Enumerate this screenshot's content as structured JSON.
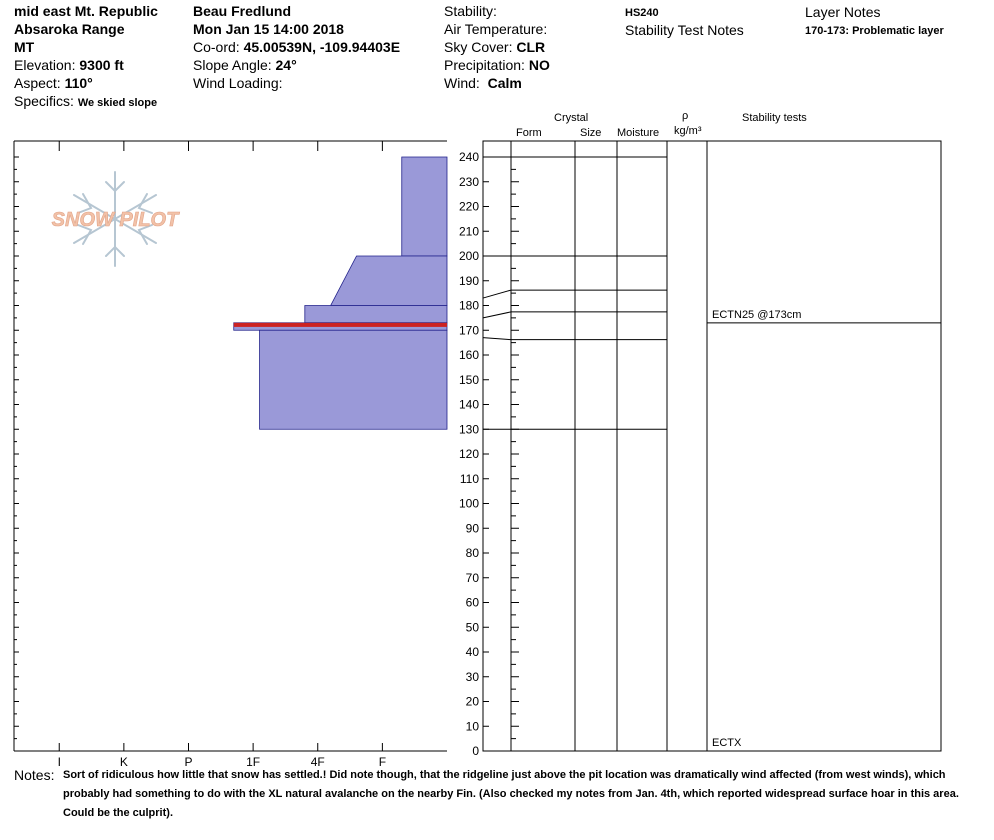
{
  "header": {
    "location_name": "mid east Mt. Republic",
    "range": "Absaroka Range",
    "state": "MT",
    "elevation_label": "Elevation:",
    "elevation_value": "9300 ft",
    "aspect_label": "Aspect:",
    "aspect_value": "110°",
    "specifics_label": "Specifics:",
    "specifics_value": "We skied slope",
    "observer": "Beau  Fredlund",
    "datetime": "Mon Jan 15 14:00 2018",
    "coord_label": "Co-ord:",
    "coord_value": "45.00539N, -109.94403E",
    "slope_label": "Slope Angle:",
    "slope_value": "24°",
    "wind_loading_label": "Wind Loading:",
    "wind_loading_value": "",
    "stability_label": "Stability:",
    "stability_value": "",
    "air_temp_label": "Air Temperature:",
    "air_temp_value": "",
    "sky_label": "Sky Cover:",
    "sky_value": "CLR",
    "precip_label": "Precipitation:",
    "precip_value": "NO",
    "wind_label": "Wind:",
    "wind_value": "Calm",
    "hs_label": "HS240",
    "stability_notes_title": "Stability Test Notes",
    "layer_notes_title": "Layer Notes",
    "layer_notes_value": "170-173: Problematic layer"
  },
  "logo": {
    "text": "SNOW PILOT"
  },
  "columns": {
    "crystal": "Crystal",
    "form": "Form",
    "size": "Size",
    "moisture": "Moisture",
    "rho": "ρ",
    "density_unit": "kg/m³",
    "stability_tests": "Stability tests"
  },
  "notes": {
    "label": "Notes:",
    "text": "Sort of ridiculous how little that snow has settled.!  Did note though, that the ridgeline just above the pit location was dramatically wind affected (from west winds), which probably had something to do with the XL natural avalanche on the nearby Fin.  (Also checked my notes from Jan. 4th, which reported widespread surface hoar in this area.  Could be the culprit)."
  },
  "colors": {
    "hardness_fill": "#9a99d8",
    "hardness_stroke": "#20208a",
    "problem_layer": "#cc2222",
    "logo_text": "#f2c2a8",
    "snowflake": "#b6c6d2"
  },
  "chart_data": {
    "type": "snow-profile",
    "y_axis": {
      "label": "",
      "unit": "cm",
      "ylim": [
        0,
        245
      ],
      "ticks": [
        0,
        10,
        20,
        30,
        40,
        50,
        60,
        70,
        80,
        90,
        100,
        110,
        120,
        130,
        140,
        150,
        160,
        170,
        180,
        190,
        200,
        210,
        220,
        230,
        240
      ]
    },
    "hardness_axis": {
      "categories": [
        "I",
        "K",
        "P",
        "1F",
        "4F",
        "F"
      ],
      "scale_max": 6.7
    },
    "hardness_profile": [
      {
        "top": 240,
        "bottom": 200,
        "hardness_top": 0.7,
        "hardness_bottom": 0.7
      },
      {
        "top": 200,
        "bottom": 180,
        "hardness_top": 1.4,
        "hardness_bottom": 1.8
      },
      {
        "top": 180,
        "bottom": 173,
        "hardness_top": 2.2,
        "hardness_bottom": 2.2
      },
      {
        "top": 173,
        "bottom": 170,
        "hardness_top": 3.3,
        "hardness_bottom": 3.3
      },
      {
        "top": 170,
        "bottom": 130,
        "hardness_top": 2.9,
        "hardness_bottom": 2.9
      }
    ],
    "problem_layer": {
      "top": 173,
      "bottom": 170
    },
    "layer_boundaries": [
      240,
      200,
      183,
      175,
      167,
      130
    ],
    "stability_tests": [
      {
        "depth": 173,
        "label": "ECTN25 @173cm"
      },
      {
        "depth": 0,
        "label": "ECTX"
      }
    ]
  }
}
